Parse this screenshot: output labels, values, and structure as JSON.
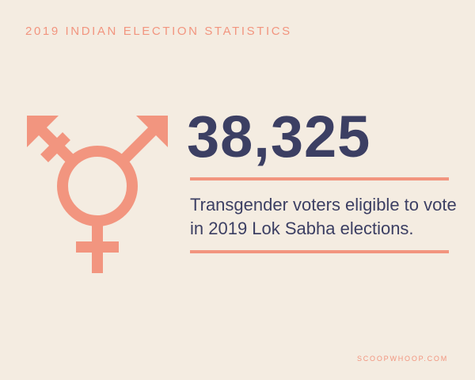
{
  "header": {
    "title": "2019 INDIAN ELECTION STATISTICS"
  },
  "stat": {
    "value": "38,325",
    "description": "Transgender voters eligible to vote in 2019 Lok Sabha elections."
  },
  "footer": {
    "credit": "SCOOPWHOOP.COM"
  },
  "icon": {
    "name": "transgender-symbol-icon"
  },
  "colors": {
    "background": "#f4ece1",
    "accent": "#f2957f",
    "text": "#3c3f63"
  }
}
